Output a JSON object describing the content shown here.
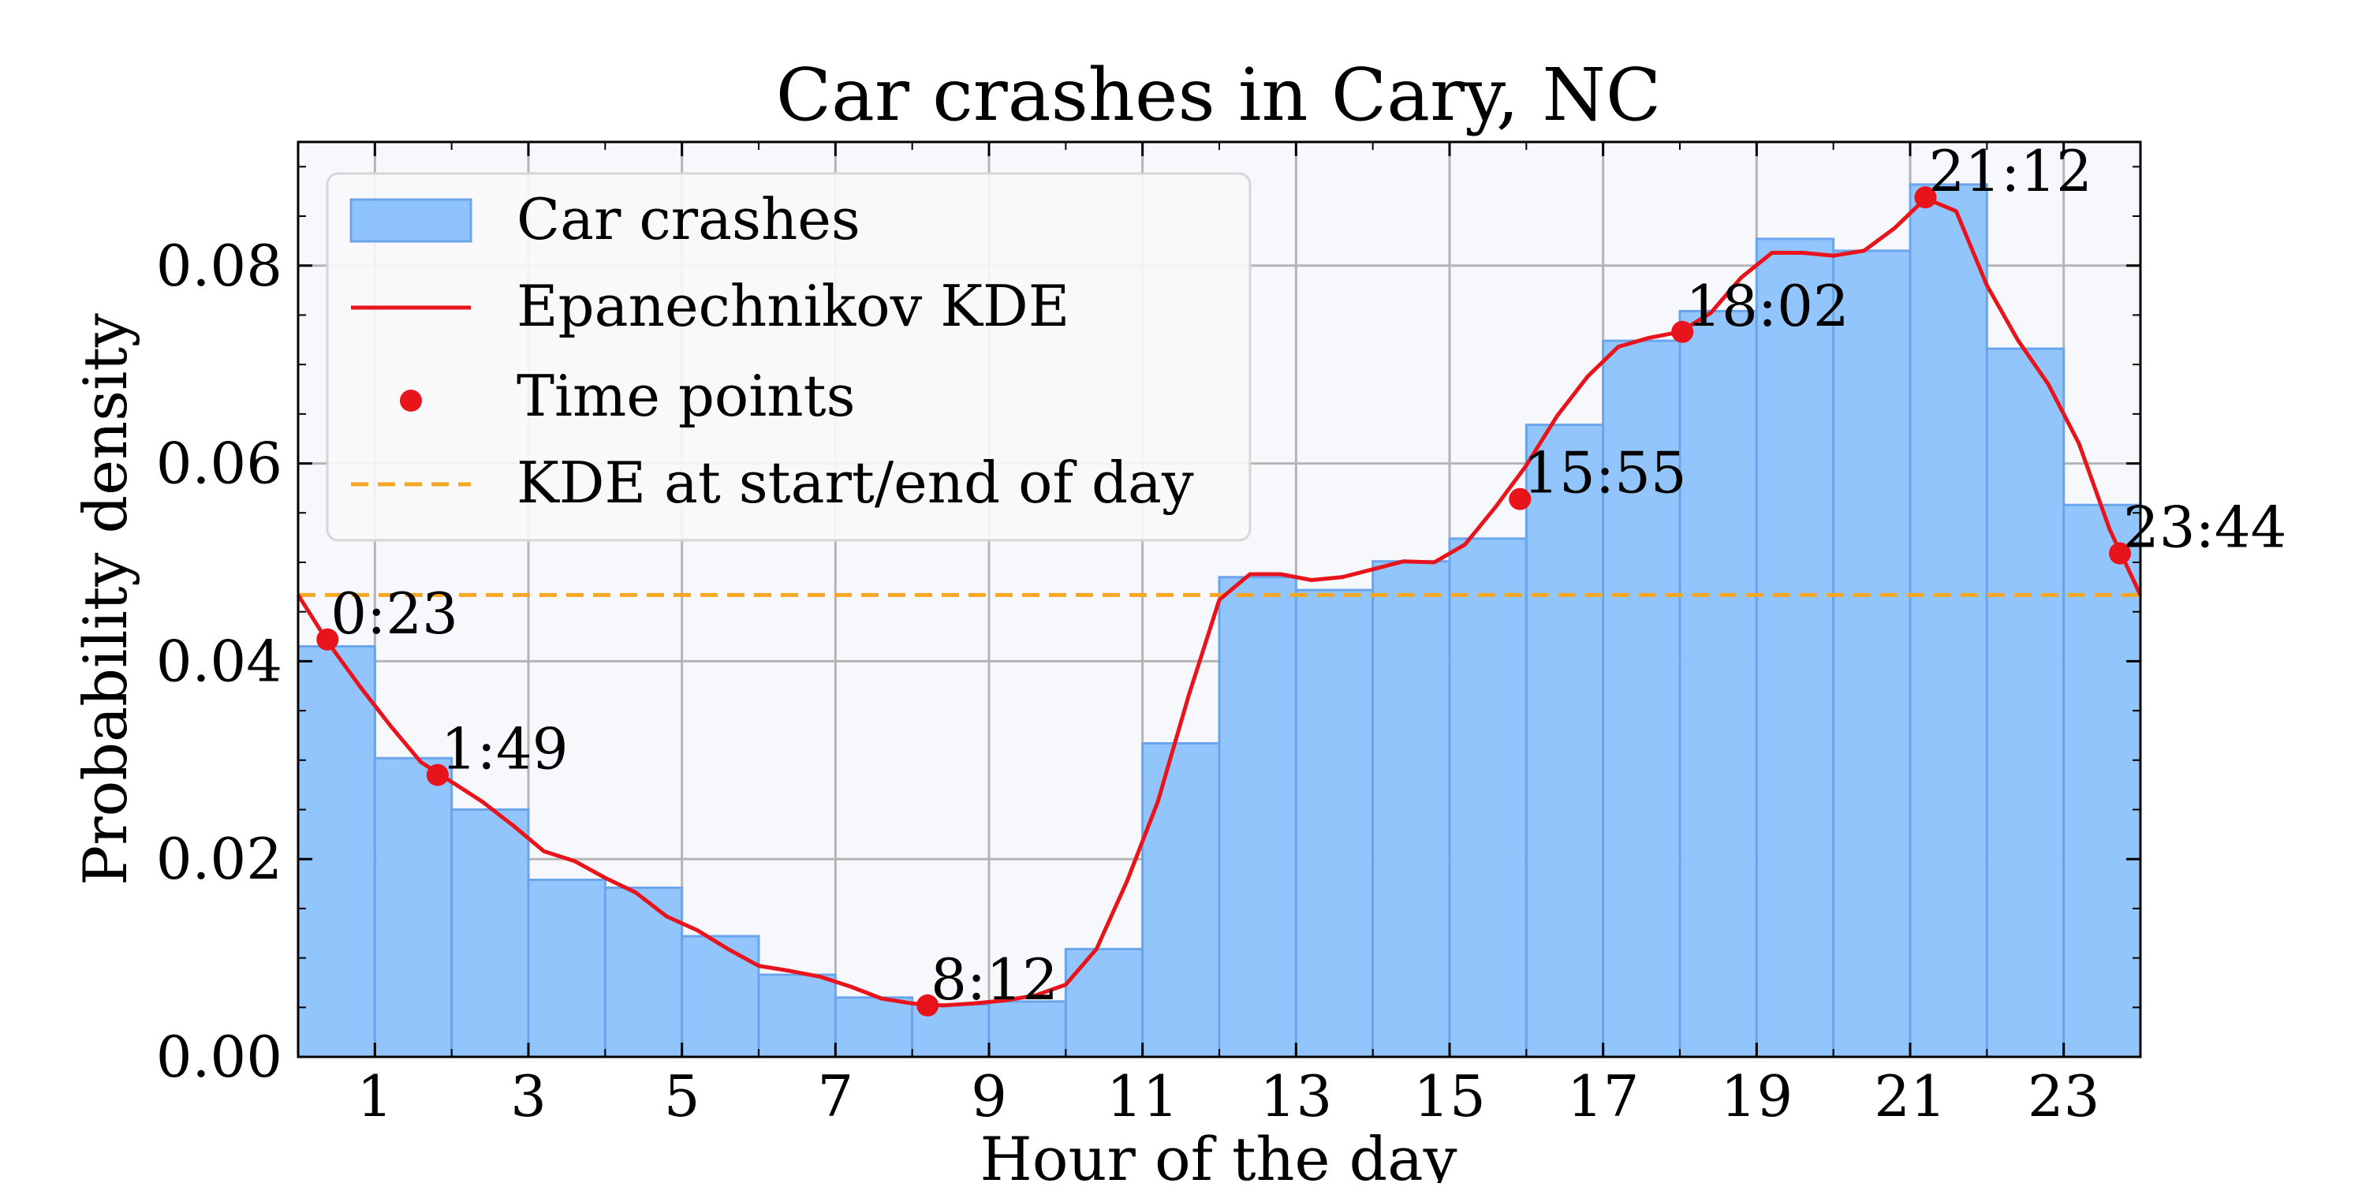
{
  "chart_data": {
    "type": "bar",
    "title": "Car crashes in Cary, NC",
    "xlabel": "Hour of the day",
    "ylabel": "Probability density",
    "xlim": [
      0,
      24
    ],
    "ylim": [
      0,
      0.0925
    ],
    "x_ticks": [
      "1",
      "3",
      "5",
      "7",
      "9",
      "11",
      "13",
      "15",
      "17",
      "19",
      "21",
      "23"
    ],
    "x_tick_values": [
      1,
      3,
      5,
      7,
      9,
      11,
      13,
      15,
      17,
      19,
      21,
      23
    ],
    "y_ticks": [
      "0.00",
      "0.02",
      "0.04",
      "0.06",
      "0.08"
    ],
    "y_tick_values": [
      0,
      0.02,
      0.04,
      0.06,
      0.08
    ],
    "grid": true,
    "legend_position": "top-left",
    "colors": {
      "background": "#f7f8fc",
      "bars": "#8ec3fb",
      "bar_edge": "#6aa5ec",
      "kde": "#e8141c",
      "points": "#e8141c",
      "baseline": "#f5a623",
      "grid": "#b5b5b5"
    },
    "series": [
      {
        "name": "Car crashes",
        "kind": "histogram",
        "bin_edges": [
          0,
          1,
          2,
          3,
          4,
          5,
          6,
          7,
          8,
          9,
          10,
          11,
          12,
          13,
          14,
          15,
          16,
          17,
          18,
          19,
          20,
          21,
          22,
          23,
          24
        ],
        "values": [
          0.0415,
          0.0302,
          0.025,
          0.0179,
          0.0171,
          0.0122,
          0.0083,
          0.006,
          0.0053,
          0.0056,
          0.0109,
          0.0317,
          0.0485,
          0.0472,
          0.0501,
          0.0524,
          0.0639,
          0.0724,
          0.0754,
          0.0827,
          0.0815,
          0.0882,
          0.0716,
          0.0558
        ]
      },
      {
        "name": "Epanechnikov KDE",
        "kind": "line",
        "x": [
          0,
          0.4,
          0.8,
          1.2,
          1.6,
          2.0,
          2.4,
          2.8,
          3.2,
          3.6,
          4.0,
          4.4,
          4.8,
          5.2,
          5.6,
          6.0,
          6.4,
          6.8,
          7.2,
          7.6,
          8.0,
          8.4,
          8.8,
          9.2,
          9.6,
          10.0,
          10.4,
          10.8,
          11.2,
          11.6,
          12.0,
          12.4,
          12.8,
          13.2,
          13.6,
          14.0,
          14.4,
          14.8,
          15.2,
          15.6,
          16.0,
          16.4,
          16.8,
          17.2,
          17.6,
          18.0,
          18.4,
          18.8,
          19.2,
          19.6,
          20.0,
          20.4,
          20.8,
          21.2,
          21.6,
          22.0,
          22.4,
          22.8,
          23.2,
          23.6,
          24.0
        ],
        "y": [
          0.0467,
          0.0418,
          0.0375,
          0.0335,
          0.0298,
          0.0278,
          0.0258,
          0.0234,
          0.0208,
          0.0198,
          0.0181,
          0.0166,
          0.0142,
          0.0128,
          0.0109,
          0.0092,
          0.0087,
          0.0081,
          0.0071,
          0.0059,
          0.0054,
          0.0052,
          0.0054,
          0.0057,
          0.0062,
          0.0073,
          0.0109,
          0.0178,
          0.0258,
          0.0365,
          0.0462,
          0.0488,
          0.0488,
          0.0482,
          0.0485,
          0.0493,
          0.0501,
          0.05,
          0.0518,
          0.0556,
          0.0598,
          0.0648,
          0.0688,
          0.0718,
          0.0727,
          0.0733,
          0.0752,
          0.0788,
          0.0813,
          0.0813,
          0.081,
          0.0815,
          0.0838,
          0.0868,
          0.0855,
          0.078,
          0.0725,
          0.068,
          0.062,
          0.0533,
          0.0467
        ]
      },
      {
        "name": "Time points",
        "kind": "scatter",
        "points": [
          {
            "x": 0.383,
            "y": 0.0422,
            "label": "0:23"
          },
          {
            "x": 1.817,
            "y": 0.0285,
            "label": "1:49"
          },
          {
            "x": 8.2,
            "y": 0.0052,
            "label": "8:12"
          },
          {
            "x": 15.917,
            "y": 0.0564,
            "label": "15:55"
          },
          {
            "x": 18.033,
            "y": 0.0733,
            "label": "18:02"
          },
          {
            "x": 21.2,
            "y": 0.0869,
            "label": "21:12"
          },
          {
            "x": 23.733,
            "y": 0.0509,
            "label": "23:44"
          }
        ]
      },
      {
        "name": "KDE at start/end of day",
        "kind": "hline",
        "y": 0.0467
      }
    ]
  }
}
